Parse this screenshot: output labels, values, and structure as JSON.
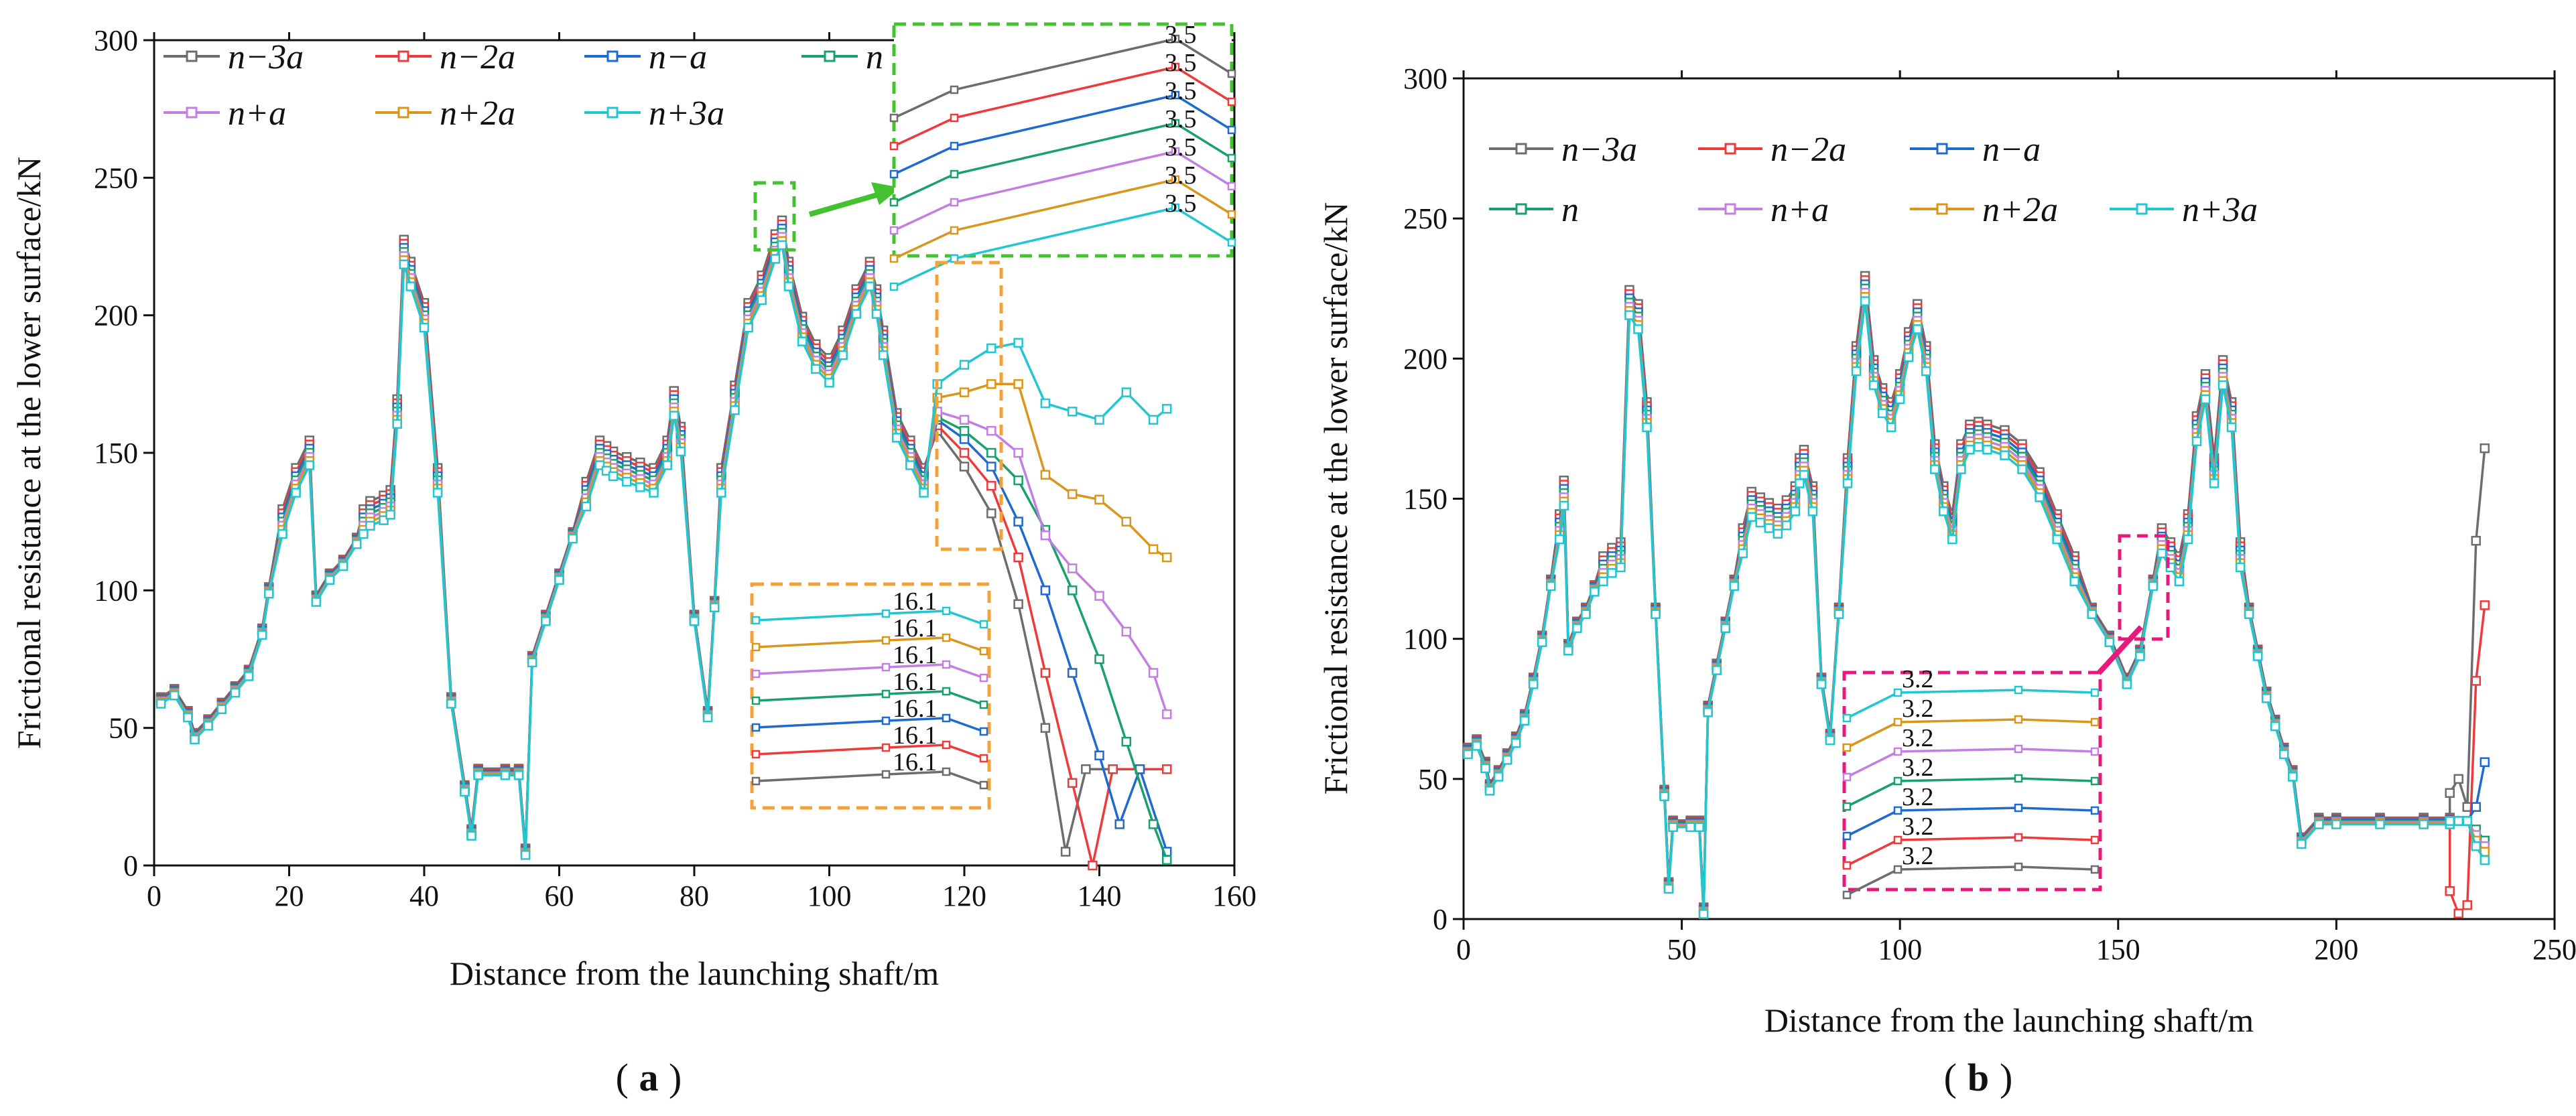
{
  "chart_data": [
    {
      "type": "line",
      "panel_label": "a",
      "xlabel": "Distance from the launching shaft/m",
      "ylabel": "Frictional resistance at the lower surface/kN",
      "xlim": [
        0,
        160
      ],
      "ylim": [
        0,
        300
      ],
      "xticks": [
        0,
        20,
        40,
        60,
        80,
        100,
        120,
        140,
        160
      ],
      "yticks": [
        0,
        50,
        100,
        150,
        200,
        250,
        300
      ],
      "base_x": [
        1,
        3,
        5,
        6,
        8,
        10,
        12,
        14,
        16,
        17,
        19,
        21,
        23,
        24,
        26,
        28,
        30,
        31,
        32,
        34,
        35,
        36,
        37,
        38,
        40,
        42,
        44,
        46,
        47,
        48,
        52,
        54,
        55,
        56,
        58,
        60,
        62,
        64,
        66,
        67,
        68,
        70,
        72,
        74,
        76,
        77,
        78,
        80,
        82,
        83,
        84,
        86,
        88,
        90,
        92,
        93,
        94,
        96,
        98,
        100,
        102,
        104,
        106,
        107,
        108,
        110,
        112,
        114
      ],
      "base_y": [
        60,
        63,
        55,
        47,
        52,
        58,
        64,
        70,
        85,
        100,
        125,
        140,
        150,
        97,
        105,
        110,
        118,
        125,
        128,
        130,
        132,
        165,
        223,
        215,
        200,
        140,
        60,
        28,
        12,
        34,
        34,
        34,
        5,
        75,
        90,
        105,
        120,
        135,
        150,
        148,
        146,
        144,
        142,
        140,
        150,
        168,
        155,
        90,
        55,
        95,
        140,
        170,
        200,
        210,
        225,
        230,
        215,
        195,
        185,
        180,
        190,
        205,
        215,
        205,
        190,
        160,
        150,
        140
      ],
      "series": [
        {
          "name": "n−3a",
          "color": "#6d6d6d",
          "tail_x": [
            116,
            120,
            124,
            128,
            132,
            135,
            138,
            142,
            146,
            150
          ],
          "tail_y": [
            158,
            145,
            128,
            95,
            50,
            5,
            35,
            35,
            35,
            35
          ]
        },
        {
          "name": "n−2a",
          "color": "#ee3a3a",
          "tail_x": [
            116,
            120,
            124,
            128,
            132,
            136,
            139,
            142,
            146,
            150
          ],
          "tail_y": [
            160,
            150,
            138,
            112,
            70,
            30,
            0,
            35,
            35,
            35
          ]
        },
        {
          "name": "n−a",
          "color": "#1f6ad1",
          "tail_x": [
            116,
            120,
            124,
            128,
            132,
            136,
            140,
            143,
            146,
            150
          ],
          "tail_y": [
            162,
            155,
            145,
            125,
            100,
            70,
            40,
            15,
            35,
            5
          ]
        },
        {
          "name": "n",
          "color": "#1aa06a",
          "tail_x": [
            116,
            120,
            124,
            128,
            132,
            136,
            140,
            144,
            148,
            150
          ],
          "tail_y": [
            163,
            158,
            150,
            140,
            122,
            100,
            75,
            45,
            15,
            2
          ]
        },
        {
          "name": "n+a",
          "color": "#c27ee0",
          "tail_x": [
            116,
            120,
            124,
            128,
            132,
            136,
            140,
            144,
            148,
            150
          ],
          "tail_y": [
            165,
            162,
            158,
            150,
            120,
            108,
            98,
            85,
            70,
            55
          ]
        },
        {
          "name": "n+2a",
          "color": "#d9961a",
          "tail_x": [
            116,
            120,
            124,
            128,
            132,
            136,
            140,
            144,
            148,
            150
          ],
          "tail_y": [
            170,
            172,
            175,
            175,
            142,
            135,
            133,
            125,
            115,
            112
          ]
        },
        {
          "name": "n+3a",
          "color": "#22c6d0",
          "tail_x": [
            116,
            120,
            124,
            128,
            132,
            136,
            140,
            144,
            148,
            150
          ],
          "tail_y": [
            175,
            182,
            188,
            190,
            168,
            165,
            162,
            172,
            162,
            166
          ]
        }
      ],
      "annotations": [
        "3.5",
        "3.5",
        "3.5",
        "3.5",
        "3.5",
        "3.5",
        "3.5",
        "16.1",
        "16.1",
        "16.1",
        "16.1",
        "16.1",
        "16.1",
        "16.1"
      ]
    },
    {
      "type": "line",
      "panel_label": "b",
      "xlabel": "Distance from the launching shaft/m",
      "ylabel": "Frictional resistance at the lower surface/kN",
      "xlim": [
        0,
        250
      ],
      "ylim": [
        0,
        300
      ],
      "xticks": [
        0,
        50,
        100,
        150,
        200,
        250
      ],
      "yticks": [
        0,
        50,
        100,
        150,
        200,
        250,
        300
      ],
      "base_x": [
        1,
        3,
        5,
        6,
        8,
        10,
        12,
        14,
        16,
        18,
        20,
        22,
        23,
        24,
        26,
        28,
        30,
        32,
        34,
        36,
        38,
        40,
        42,
        44,
        46,
        47,
        48,
        52,
        54,
        55,
        56,
        58,
        60,
        62,
        64,
        66,
        68,
        70,
        72,
        74,
        76,
        77,
        78,
        80,
        82,
        84,
        86,
        88,
        90,
        92,
        94,
        96,
        98,
        100,
        102,
        104,
        106,
        108,
        110,
        112,
        114,
        116,
        118,
        120,
        124,
        128,
        132,
        136,
        140,
        144,
        148,
        152,
        155,
        158,
        160,
        162,
        164,
        166,
        168,
        170,
        172,
        174,
        176,
        178,
        180,
        182,
        184,
        186,
        188,
        190,
        192,
        196,
        200,
        210,
        220,
        226
      ],
      "base_y": [
        60,
        63,
        55,
        47,
        52,
        58,
        64,
        72,
        85,
        100,
        120,
        140,
        152,
        97,
        105,
        110,
        118,
        125,
        128,
        130,
        220,
        215,
        180,
        110,
        45,
        12,
        34,
        34,
        34,
        3,
        75,
        90,
        105,
        120,
        135,
        148,
        146,
        144,
        142,
        145,
        150,
        160,
        163,
        150,
        85,
        65,
        110,
        160,
        200,
        225,
        195,
        185,
        180,
        190,
        205,
        215,
        200,
        165,
        150,
        140,
        165,
        172,
        173,
        172,
        170,
        165,
        155,
        140,
        125,
        110,
        100,
        85,
        95,
        120,
        135,
        130,
        125,
        140,
        175,
        190,
        160,
        195,
        180,
        130,
        110,
        95,
        80,
        70,
        60,
        52,
        28,
        35,
        35,
        35,
        35,
        35
      ],
      "series": [
        {
          "name": "n−3a",
          "color": "#6d6d6d",
          "tail_x": [
            226,
            228,
            230,
            232,
            234
          ],
          "tail_y": [
            45,
            50,
            40,
            135,
            168
          ]
        },
        {
          "name": "n−2a",
          "color": "#ee3a3a",
          "tail_x": [
            226,
            228,
            230,
            232,
            234
          ],
          "tail_y": [
            10,
            2,
            5,
            85,
            112
          ]
        },
        {
          "name": "n−a",
          "color": "#1f6ad1",
          "tail_x": [
            226,
            228,
            230,
            232,
            234
          ],
          "tail_y": [
            35,
            35,
            35,
            40,
            56
          ]
        },
        {
          "name": "n",
          "color": "#1aa06a",
          "tail_x": [
            226,
            228,
            230,
            232,
            234
          ],
          "tail_y": [
            35,
            35,
            35,
            32,
            28
          ]
        },
        {
          "name": "n+a",
          "color": "#c27ee0",
          "tail_x": [
            226,
            228,
            230,
            232,
            234
          ],
          "tail_y": [
            35,
            35,
            35,
            30,
            26
          ]
        },
        {
          "name": "n+2a",
          "color": "#d9961a",
          "tail_x": [
            226,
            228,
            230,
            232,
            234
          ],
          "tail_y": [
            35,
            35,
            35,
            28,
            24
          ]
        },
        {
          "name": "n+3a",
          "color": "#22c6d0",
          "tail_x": [
            226,
            228,
            230,
            232,
            234
          ],
          "tail_y": [
            35,
            35,
            35,
            26,
            21
          ]
        }
      ],
      "annotations": [
        "3.2",
        "3.2",
        "3.2",
        "3.2",
        "3.2",
        "3.2",
        "3.2"
      ]
    }
  ]
}
